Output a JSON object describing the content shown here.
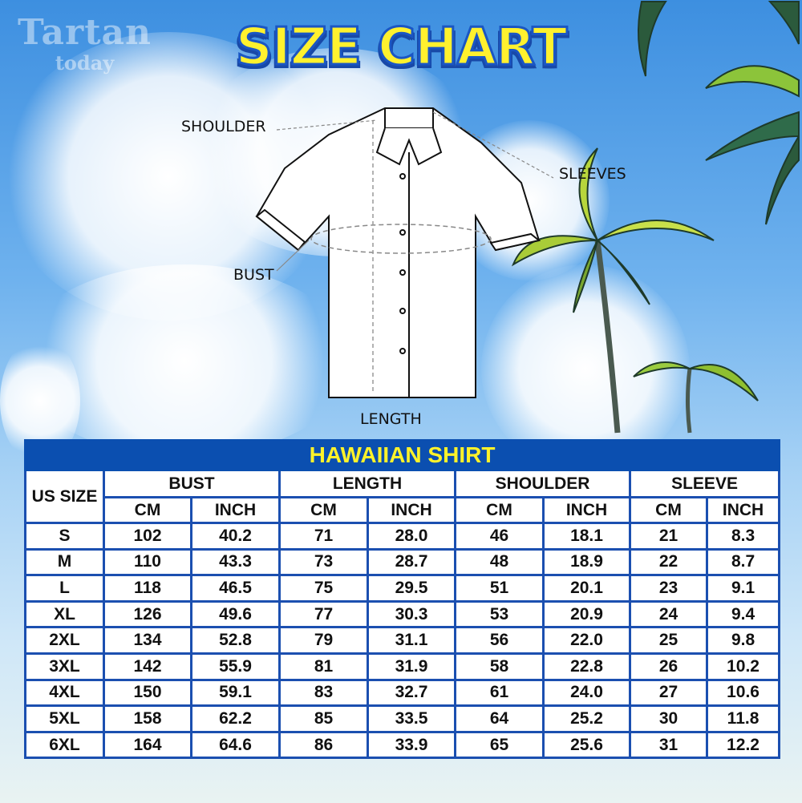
{
  "logo": {
    "line1": "Tartan",
    "line2": "today"
  },
  "title": "SIZE CHART",
  "diagram_labels": {
    "shoulder": "SHOULDER",
    "sleeves": "SLEEVES",
    "bust": "BUST",
    "length": "LENGTH"
  },
  "colors": {
    "header_blue": "#0b4fb0",
    "title_yellow": "#fff12e",
    "border_blue": "#1b4fb0"
  },
  "table": {
    "caption": "HAWAIIAN SHIRT",
    "size_header": "US SIZE",
    "groups": [
      "BUST",
      "LENGTH",
      "SHOULDER",
      "SLEEVE"
    ],
    "units": [
      "CM",
      "INCH",
      "CM",
      "INCH",
      "CM",
      "INCH",
      "CM",
      "INCH"
    ],
    "rows": [
      [
        "S",
        "102",
        "40.2",
        "71",
        "28.0",
        "46",
        "18.1",
        "21",
        "8.3"
      ],
      [
        "M",
        "110",
        "43.3",
        "73",
        "28.7",
        "48",
        "18.9",
        "22",
        "8.7"
      ],
      [
        "L",
        "118",
        "46.5",
        "75",
        "29.5",
        "51",
        "20.1",
        "23",
        "9.1"
      ],
      [
        "XL",
        "126",
        "49.6",
        "77",
        "30.3",
        "53",
        "20.9",
        "24",
        "9.4"
      ],
      [
        "2XL",
        "134",
        "52.8",
        "79",
        "31.1",
        "56",
        "22.0",
        "25",
        "9.8"
      ],
      [
        "3XL",
        "142",
        "55.9",
        "81",
        "31.9",
        "58",
        "22.8",
        "26",
        "10.2"
      ],
      [
        "4XL",
        "150",
        "59.1",
        "83",
        "32.7",
        "61",
        "24.0",
        "27",
        "10.6"
      ],
      [
        "5XL",
        "158",
        "62.2",
        "85",
        "33.5",
        "64",
        "25.2",
        "30",
        "11.8"
      ],
      [
        "6XL",
        "164",
        "64.6",
        "86",
        "33.9",
        "65",
        "25.6",
        "31",
        "12.2"
      ]
    ]
  }
}
